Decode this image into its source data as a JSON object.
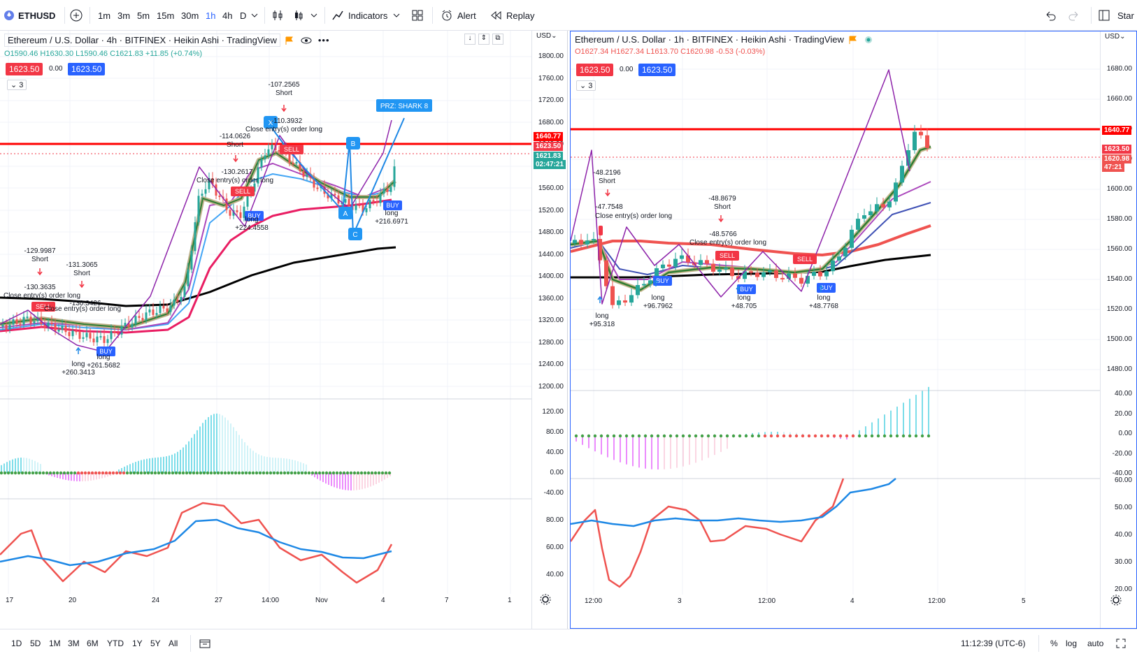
{
  "toolbar": {
    "symbol": "ETHUSD",
    "intervals": [
      "1m",
      "3m",
      "5m",
      "15m",
      "30m",
      "1h",
      "4h",
      "D"
    ],
    "active_interval": "1h",
    "indicators_label": "Indicators",
    "alert_label": "Alert",
    "replay_label": "Replay",
    "start_label": "Star"
  },
  "left_pane": {
    "title": "Ethereum / U.S. Dollar · 4h · BITFINEX · Heikin Ashi · TradingView",
    "ohlc": {
      "o": "O1590.46",
      "h": "H1630.30",
      "l": "L1590.46",
      "c": "C1621.83",
      "chg": "+11.85 (+0.74%)"
    },
    "sell_price": "1623.50",
    "spread": "0.00",
    "buy_price": "1623.50",
    "indicator_count": "3",
    "currency": "USD",
    "price_axis": [
      "1800.00",
      "1760.00",
      "1720.00",
      "1680.00",
      "1640.00",
      "1600.00",
      "1560.00",
      "1520.00",
      "1480.00",
      "1440.00",
      "1400.00",
      "1360.00",
      "1320.00",
      "1280.00",
      "1240.00",
      "1200.00"
    ],
    "tag_red": "1640.77",
    "tag_price": "1623.50",
    "tag_last": "1621.83",
    "tag_timer": "02:47:21",
    "osc_axis": [
      "120.00",
      "80.00",
      "40.00",
      "0.00",
      "-40.00"
    ],
    "rsi_axis": [
      "80.00",
      "60.00",
      "40.00"
    ],
    "time_axis": [
      "17",
      "20",
      "24",
      "27",
      "14:00",
      "Nov",
      "4",
      "7",
      "1"
    ],
    "prz_label": "PRZ: SHARK 8",
    "pattern_labels": [
      "X",
      "B",
      "A",
      "C"
    ],
    "annotations": [
      {
        "lines": [
          "-129.9987",
          "Short"
        ]
      },
      {
        "lines": [
          "-131.3065",
          "Short"
        ]
      },
      {
        "lines": [
          "-130.3635"
        ]
      },
      {
        "lines": [
          "Close entry(s) order long"
        ]
      },
      {
        "lines": [
          "-130.3426"
        ]
      },
      {
        "lines": [
          "Close entry(s) order long"
        ]
      },
      {
        "lines": [
          "long",
          "+260.3413"
        ]
      },
      {
        "lines": [
          "long",
          "+261.5682"
        ]
      },
      {
        "lines": [
          "-114.0626",
          "Short"
        ]
      },
      {
        "lines": [
          "-130.2617"
        ]
      },
      {
        "lines": [
          "Close entry(s) order long"
        ]
      },
      {
        "lines": [
          "long",
          "+224.4558"
        ]
      },
      {
        "lines": [
          "-107.2565",
          "Short"
        ]
      },
      {
        "lines": [
          "-110.3932"
        ]
      },
      {
        "lines": [
          "Close entry(s) order long"
        ]
      },
      {
        "lines": [
          "long",
          "+216.6971"
        ]
      }
    ],
    "buy_label": "BUY",
    "sell_label": "SELL"
  },
  "right_pane": {
    "title": "Ethereum / U.S. Dollar · 1h · BITFINEX · Heikin Ashi · TradingView",
    "ohlc": {
      "o": "O1627.34",
      "h": "H1627.34",
      "l": "L1613.70",
      "c": "C1620.98",
      "chg": "-0.53 (-0.03%)"
    },
    "sell_price": "1623.50",
    "spread": "0.00",
    "buy_price": "1623.50",
    "indicator_count": "3",
    "currency": "USD",
    "price_axis": [
      "1680.00",
      "1660.00",
      "1640.00",
      "1620.00",
      "1600.00",
      "1580.00",
      "1560.00",
      "1540.00",
      "1520.00",
      "1500.00",
      "1480.00"
    ],
    "tag_red": "1640.77",
    "tag_price": "1623.50",
    "tag_last": "1620.98",
    "tag_timer": "47:21",
    "osc_axis": [
      "40.00",
      "20.00",
      "0.00",
      "-20.00",
      "-40.00"
    ],
    "rsi_axis": [
      "60.00",
      "50.00",
      "40.00",
      "30.00",
      "20.00"
    ],
    "time_axis": [
      "12:00",
      "3",
      "12:00",
      "4",
      "12:00",
      "5"
    ],
    "annotations": [
      {
        "lines": [
          "-48.2196",
          "Short"
        ]
      },
      {
        "lines": [
          "-47.7548"
        ]
      },
      {
        "lines": [
          "Close entry(s) order long"
        ]
      },
      {
        "lines": [
          "long",
          "+95.318"
        ]
      },
      {
        "lines": [
          "long",
          "+96.7962"
        ]
      },
      {
        "lines": [
          "-48.8679",
          "Short"
        ]
      },
      {
        "lines": [
          "-48.5766"
        ]
      },
      {
        "lines": [
          "Close entry(s) order long"
        ]
      },
      {
        "lines": [
          "long",
          "+48.705"
        ]
      },
      {
        "lines": [
          "long",
          "+48.7768"
        ]
      }
    ],
    "buy_label": "BUY",
    "sell_label": "SELL"
  },
  "bottombar": {
    "ranges": [
      "1D",
      "5D",
      "1M",
      "3M",
      "6M",
      "YTD",
      "1Y",
      "5Y",
      "All"
    ],
    "clock": "11:12:39 (UTC-6)",
    "percent": "%",
    "log": "log",
    "auto": "auto"
  },
  "colors": {
    "red_line": "#ff0000",
    "buy_blue": "#2962ff",
    "sell_red": "#f23645",
    "bull": "#26a69a",
    "bear": "#ef5350"
  }
}
